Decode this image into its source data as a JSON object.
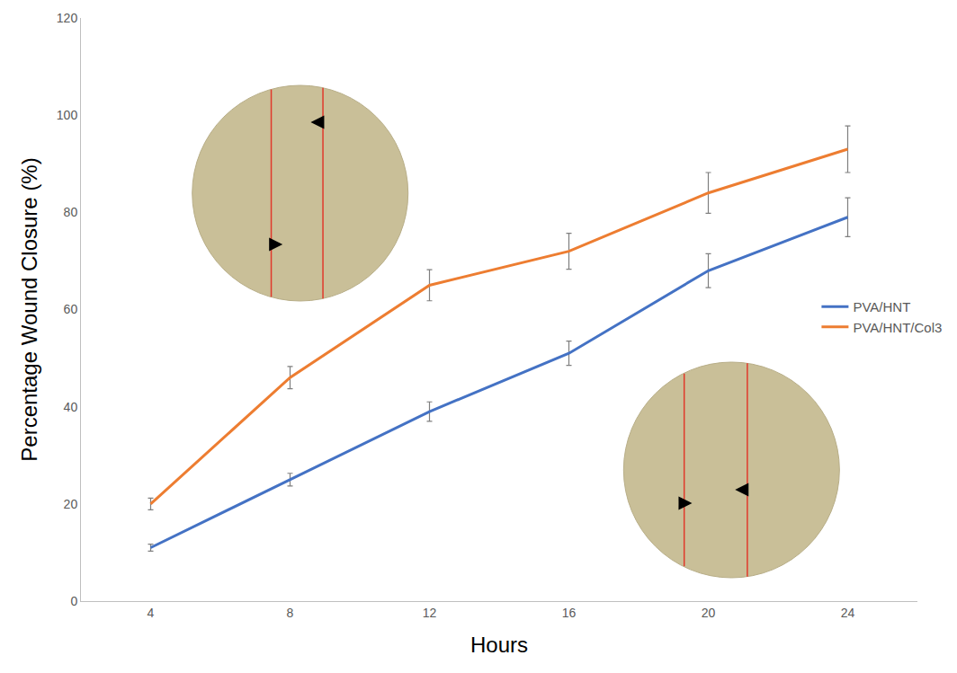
{
  "chart_data": {
    "type": "line",
    "x_label": "Hours",
    "y_label": "Percentage Wound Closure (%)",
    "categories": [
      "4",
      "8",
      "12",
      "16",
      "20",
      "24"
    ],
    "series": [
      {
        "name": "PVA/HNT",
        "color": "#4472c4",
        "values": [
          11,
          25,
          39,
          51,
          68,
          79
        ],
        "errors": [
          0.7,
          1.3,
          2,
          2.5,
          3.5,
          4
        ]
      },
      {
        "name": "PVA/HNT/Col3",
        "color": "#ed7d31",
        "values": [
          20,
          46,
          65,
          72,
          84,
          93
        ],
        "errors": [
          1.2,
          2.3,
          3.2,
          3.7,
          4.2,
          4.8
        ]
      }
    ],
    "ylim": [
      0,
      120
    ],
    "yticks": [
      0,
      20,
      40,
      60,
      80,
      100,
      120
    ],
    "grid": false,
    "legend": "right"
  }
}
